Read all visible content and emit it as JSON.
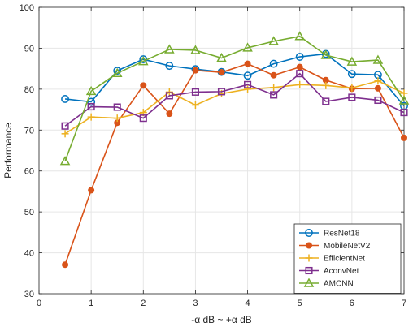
{
  "chart_data": {
    "type": "line",
    "title": "",
    "xlabel": "-α dB ~ +α dB",
    "ylabel": "Performance",
    "xlim": [
      0,
      7
    ],
    "ylim": [
      30,
      100
    ],
    "xticks": [
      0,
      1,
      2,
      3,
      4,
      5,
      6,
      7
    ],
    "yticks": [
      30,
      40,
      50,
      60,
      70,
      80,
      90,
      100
    ],
    "grid": true,
    "legend_position": "bottom-right",
    "x": [
      0.5,
      1,
      1.5,
      2,
      2.5,
      3,
      3.5,
      4,
      4.5,
      5,
      5.5,
      6,
      6.5,
      7
    ],
    "series": [
      {
        "name": "ResNet18",
        "color": "#0072BD",
        "marker": "circle",
        "values": [
          77.6,
          76.9,
          84.5,
          87.3,
          85.7,
          84.9,
          84.2,
          83.3,
          86.2,
          87.9,
          88.6,
          83.7,
          83.5,
          75.9
        ]
      },
      {
        "name": "MobileNetV2",
        "color": "#D95319",
        "marker": "dot",
        "values": [
          37.1,
          55.3,
          71.8,
          80.9,
          74.0,
          84.6,
          84.1,
          86.2,
          83.4,
          85.4,
          82.2,
          80.1,
          80.2,
          68.1
        ]
      },
      {
        "name": "EfficientNet",
        "color": "#EDB120",
        "marker": "plus",
        "values": [
          69.1,
          73.2,
          72.9,
          74.3,
          79.3,
          76.1,
          78.9,
          80.0,
          80.4,
          81.1,
          80.9,
          80.3,
          82.0,
          79.0
        ]
      },
      {
        "name": "AconvNet",
        "color": "#7E2F8E",
        "marker": "square",
        "values": [
          71.0,
          75.7,
          75.6,
          72.9,
          78.4,
          79.3,
          79.4,
          81.1,
          78.6,
          83.8,
          77.0,
          78.0,
          77.3,
          74.3
        ]
      },
      {
        "name": "AMCNN",
        "color": "#77AC30",
        "marker": "triangle",
        "values": [
          62.4,
          79.5,
          83.9,
          86.8,
          89.7,
          89.5,
          87.6,
          90.1,
          91.7,
          92.9,
          88.3,
          86.7,
          87.1,
          77.2
        ]
      }
    ]
  }
}
